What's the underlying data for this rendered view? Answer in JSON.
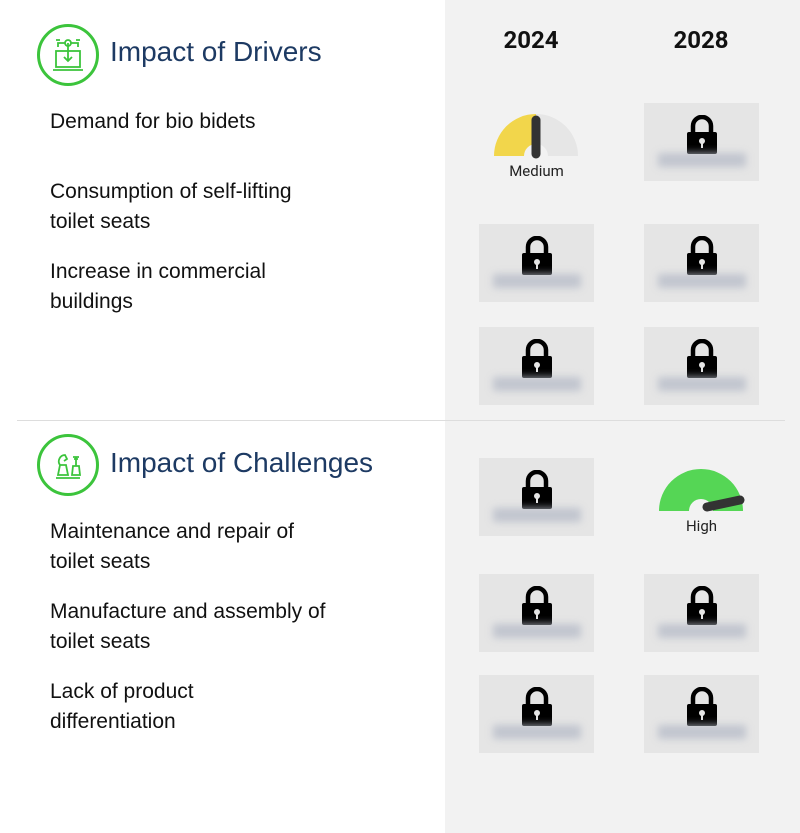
{
  "columns": [
    "2024",
    "2028"
  ],
  "drivers": {
    "title": "Impact of Drivers",
    "icon": "circuit-laptop-icon",
    "items": [
      {
        "label_lines": [
          "Demand for bio bidets"
        ]
      },
      {
        "label_lines": [
          "Consumption of self-lifting",
          "toilet seats"
        ]
      },
      {
        "label_lines": [
          "Increase in commercial",
          "buildings"
        ]
      }
    ],
    "cells": [
      [
        "gauge:Medium",
        "locked"
      ],
      [
        "locked",
        "locked"
      ],
      [
        "locked",
        "locked"
      ]
    ]
  },
  "challenges": {
    "title": "Impact of Challenges",
    "icon": "chess-icon",
    "items": [
      {
        "label_lines": [
          "Maintenance and repair of",
          "toilet seats"
        ]
      },
      {
        "label_lines": [
          "Manufacture and assembly of",
          "toilet seats"
        ]
      },
      {
        "label_lines": [
          "Lack of product",
          "differentiation"
        ]
      }
    ],
    "cells": [
      [
        "locked",
        "gauge:High"
      ],
      [
        "locked",
        "locked"
      ],
      [
        "locked",
        "locked"
      ]
    ]
  },
  "gauges": {
    "medium": {
      "label": "Medium",
      "level": 0.5,
      "color": "#f2d64b"
    },
    "high": {
      "label": "High",
      "level": 0.9,
      "color": "#55d655"
    }
  },
  "colors": {
    "accent": "#3cc43c",
    "title": "#1d3a63"
  }
}
